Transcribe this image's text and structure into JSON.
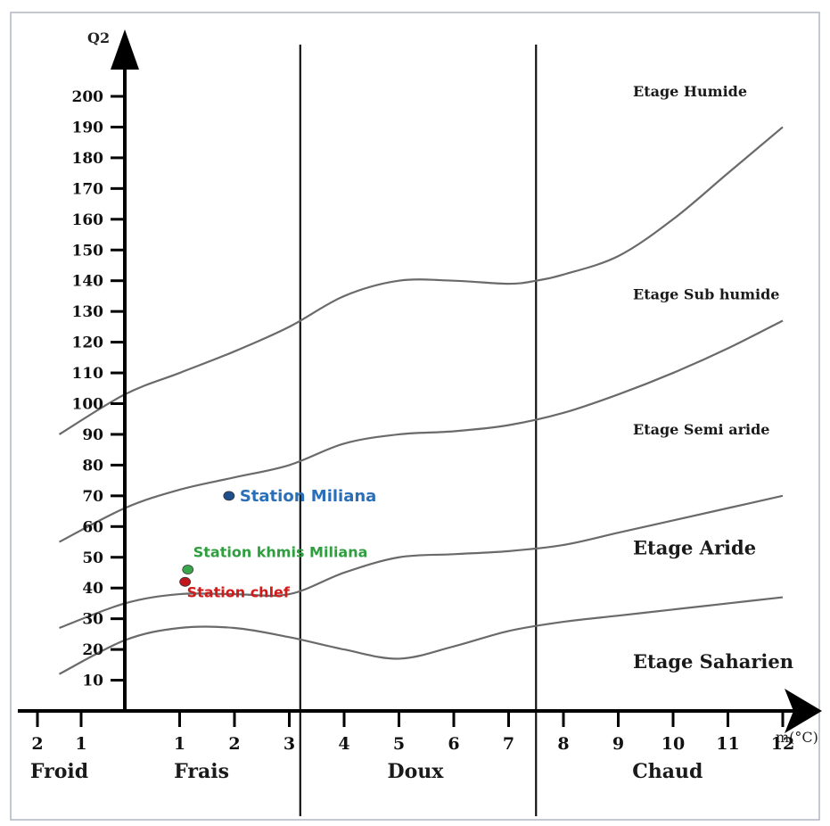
{
  "chart_data": {
    "type": "line",
    "ylabel": "Q2",
    "xlabel": "m(°C)",
    "y_ticks": [
      10,
      20,
      30,
      40,
      50,
      60,
      70,
      80,
      90,
      100,
      110,
      120,
      130,
      140,
      150,
      160,
      170,
      180,
      190,
      200
    ],
    "x_ticks": [
      {
        "label": "2",
        "value": -2
      },
      {
        "label": "1",
        "value": -1
      },
      {
        "label": "1",
        "value": 1
      },
      {
        "label": "2",
        "value": 2
      },
      {
        "label": "3",
        "value": 3
      },
      {
        "label": "4",
        "value": 4
      },
      {
        "label": "5",
        "value": 5
      },
      {
        "label": "6",
        "value": 6
      },
      {
        "label": "7",
        "value": 7
      },
      {
        "label": "8",
        "value": 8
      },
      {
        "label": "9",
        "value": 9
      },
      {
        "label": "10",
        "value": 10
      },
      {
        "label": "11",
        "value": 11
      },
      {
        "label": "12",
        "value": 12
      }
    ],
    "xlim": [
      -2.5,
      13
    ],
    "ylim": [
      -20,
      225
    ],
    "dividers": [
      3.2,
      7.5
    ],
    "zones": [
      {
        "label": "Froid",
        "x": -1.5
      },
      {
        "label": "Frais",
        "x": 1.4
      },
      {
        "label": "Doux",
        "x": 5.3
      },
      {
        "label": "Chaud",
        "x": 9.9
      }
    ],
    "boundaries": [
      {
        "x": [
          -1.5,
          0,
          1,
          2,
          3,
          4,
          5,
          6,
          7,
          7.5,
          8,
          9,
          10,
          11,
          12
        ],
        "y": [
          90,
          103,
          110,
          117,
          125,
          135,
          140,
          140,
          139,
          140,
          142,
          148,
          160,
          175,
          190
        ]
      },
      {
        "x": [
          -1.5,
          0,
          1,
          2,
          3,
          4,
          5,
          6,
          7,
          8,
          9,
          10,
          11,
          12
        ],
        "y": [
          55,
          66,
          72,
          76,
          80,
          87,
          90,
          91,
          93,
          97,
          103,
          110,
          118,
          127
        ]
      },
      {
        "x": [
          -1.5,
          0,
          1,
          2,
          3,
          4,
          5,
          6,
          7,
          8,
          9,
          10,
          11,
          12
        ],
        "y": [
          27,
          35,
          38,
          38,
          38,
          45,
          50,
          51,
          52,
          54,
          58,
          62,
          66,
          70
        ]
      },
      {
        "x": [
          -1.5,
          0,
          1,
          2,
          3,
          4,
          5,
          6,
          7,
          8,
          9,
          10,
          11,
          12
        ],
        "y": [
          12,
          23,
          27,
          27,
          24,
          20,
          17,
          21,
          26,
          29,
          31,
          33,
          35,
          37
        ]
      }
    ],
    "etages": [
      {
        "label": "Etage Humide",
        "x": 9.6,
        "y": 200
      },
      {
        "label": "Etage Sub humide",
        "x": 9.6,
        "y": 134
      },
      {
        "label": "Etage Semi aride",
        "x": 9.6,
        "y": 90
      },
      {
        "label": "Etage Aride",
        "x": 9.6,
        "y": 51
      },
      {
        "label": "Etage Saharien",
        "x": 9.6,
        "y": 14
      }
    ],
    "stations": [
      {
        "name": "Station Miliana",
        "x": 1.9,
        "y": 70,
        "color": "#1f4e8c",
        "label_color": "#2a6fb7"
      },
      {
        "name": "Station khmis Miliana",
        "x": 1.15,
        "y": 46,
        "color": "#3aa64a",
        "label_color": "#2e9e3f"
      },
      {
        "name": "Station chlef",
        "x": 1.1,
        "y": 42,
        "color": "#c0161c",
        "label_color": "#d11a1a"
      }
    ]
  }
}
